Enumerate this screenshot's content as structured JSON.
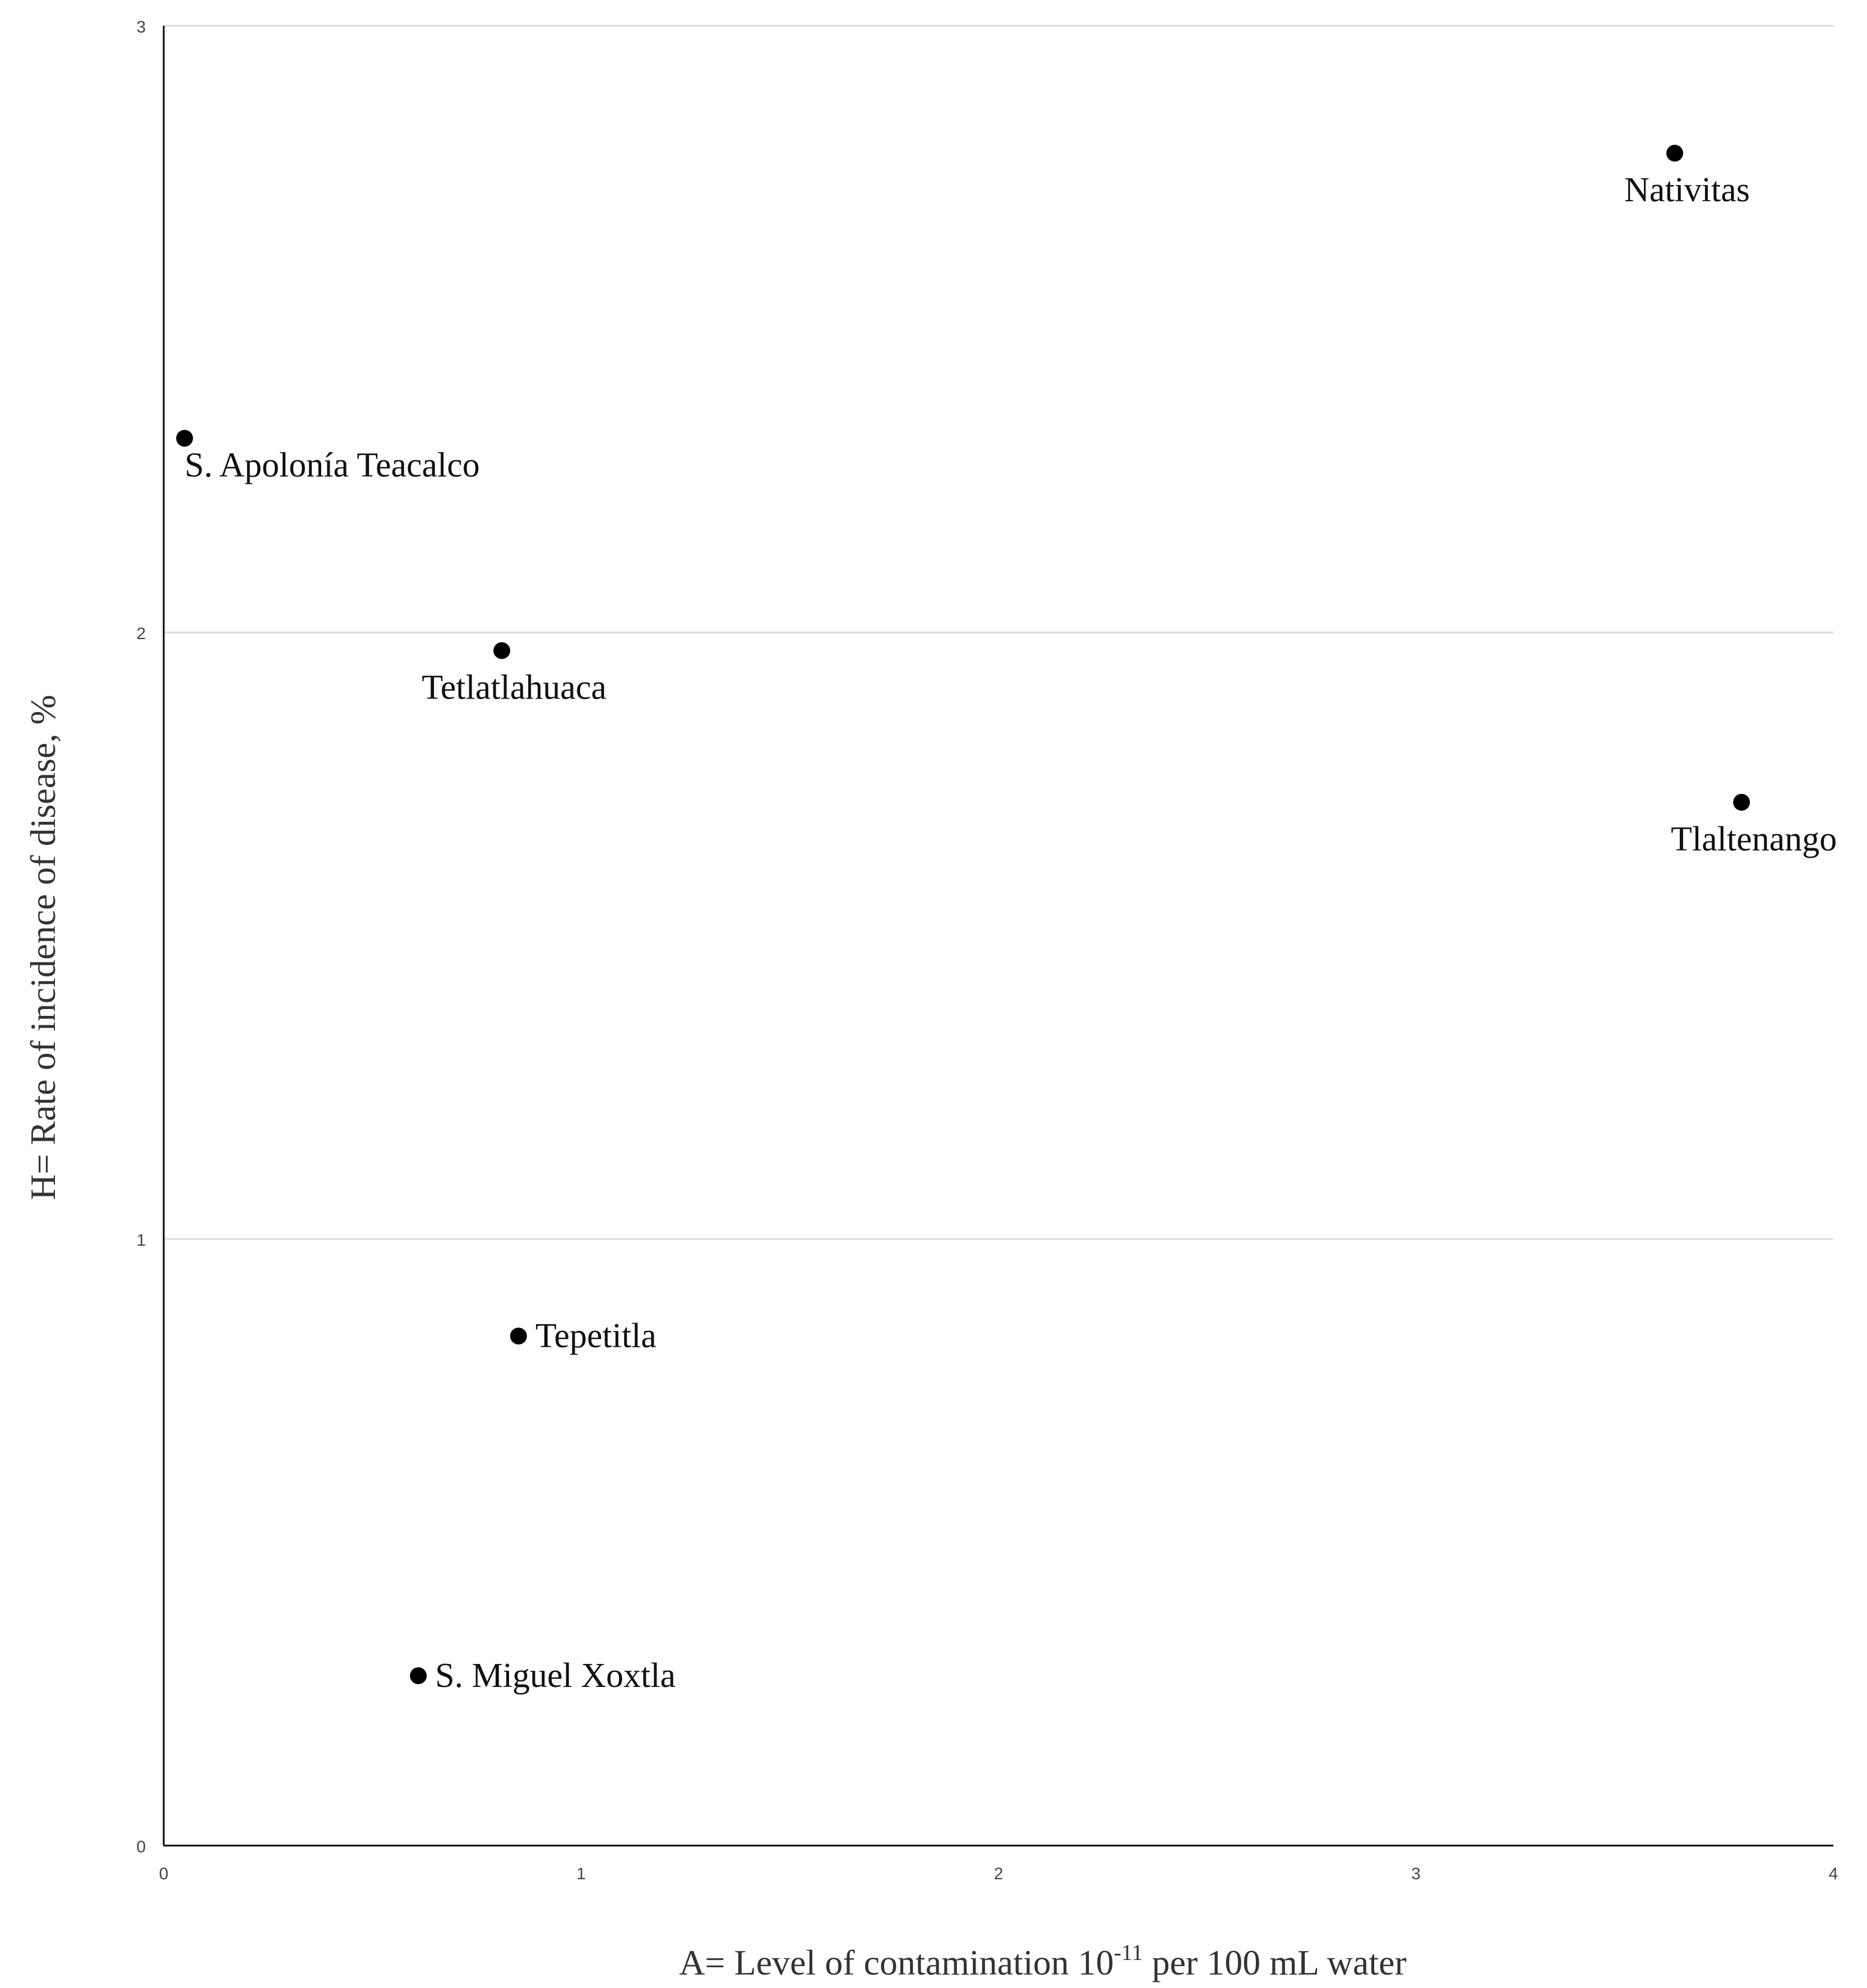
{
  "chart_data": {
    "type": "scatter",
    "title": "",
    "xlabel": {
      "prefix": "A= Level of contamination  10",
      "superscript": "-11",
      "suffix": "  per 100 mL water"
    },
    "ylabel": "H=  Rate of incidence of disease, %",
    "xlim": [
      0,
      4
    ],
    "ylim": [
      0,
      3
    ],
    "x_ticks": [
      "0",
      "1",
      "2",
      "3",
      "4"
    ],
    "y_ticks": [
      "0",
      "1",
      "2",
      "3"
    ],
    "grid": {
      "horizontal": true,
      "vertical": false
    },
    "legend": "none",
    "points": [
      {
        "label": "Nativitas",
        "x": 3.62,
        "y": 2.79,
        "label_side": "below"
      },
      {
        "label": "S. Apolonía Teacalco",
        "x": 0.05,
        "y": 2.32,
        "label_side": "below-right"
      },
      {
        "label": "Tetlatlahuaca",
        "x": 0.81,
        "y": 1.97,
        "label_side": "below"
      },
      {
        "label": "Tlaltenango",
        "x": 3.78,
        "y": 1.72,
        "label_side": "below"
      },
      {
        "label": "Tepetitla",
        "x": 0.85,
        "y": 0.84,
        "label_side": "right"
      },
      {
        "label": "S. Miguel  Xoxtla",
        "x": 0.61,
        "y": 0.28,
        "label_side": "right"
      }
    ],
    "colors": {
      "marker": "#000000",
      "axis": "#000000",
      "grid": "#d9d9d9"
    }
  }
}
